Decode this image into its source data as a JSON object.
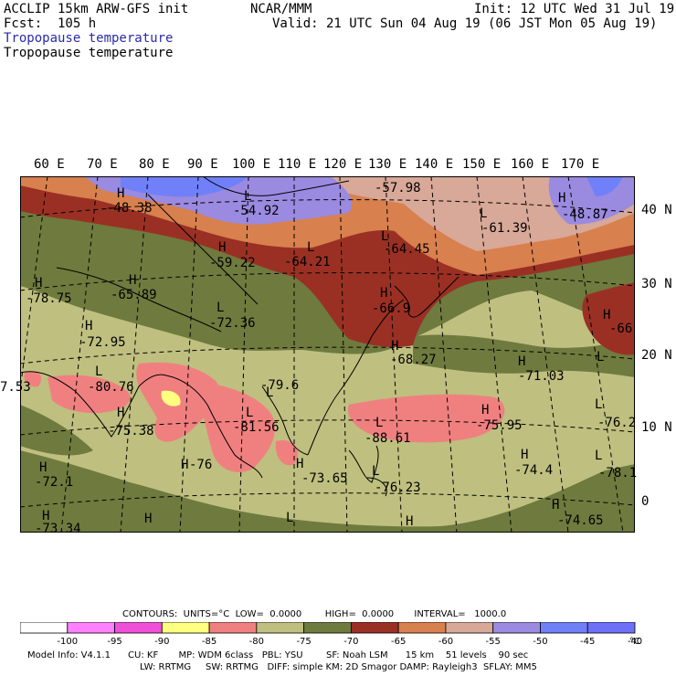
{
  "header": {
    "title": "ACCLIP 15km ARW-GFS init",
    "fcst": "Fcst:  105 h",
    "org": "NCAR/MMM",
    "init": "Init: 12 UTC Wed 31 Jul 19",
    "valid": "Valid: 21 UTC Sun 04 Aug 19 (06 JST Mon 05 Aug 19)",
    "field_label_1": "Tropopause temperature",
    "field_label_2": "Tropopause temperature"
  },
  "lon_labels": [
    "60 E",
    "70 E",
    "80 E",
    "90 E",
    "100 E",
    "110 E",
    "120 E",
    "130 E",
    "140 E",
    "150 E",
    "160 E",
    "170 E"
  ],
  "lat_labels": [
    "40 N",
    "30 N",
    "20 N",
    "10 N",
    "0"
  ],
  "map_labels": [
    {
      "m": "H",
      "v": "-48.38"
    },
    {
      "m": "L",
      "v": "-54.92"
    },
    {
      "m": "",
      "v": "-57.98"
    },
    {
      "m": "L",
      "v": "-61.39"
    },
    {
      "m": "H",
      "v": "-48.87"
    },
    {
      "m": "H",
      "v": "-59.22"
    },
    {
      "m": "L",
      "v": "-64.21"
    },
    {
      "m": "L",
      "v": "-64.45"
    },
    {
      "m": "H",
      "v": "-78.75"
    },
    {
      "m": "H",
      "v": "-65.89"
    },
    {
      "m": "L",
      "v": "-72.36"
    },
    {
      "m": "H",
      "v": "-66.9"
    },
    {
      "m": "H",
      "v": "-66"
    },
    {
      "m": "H",
      "v": "-72.95"
    },
    {
      "m": "H",
      "v": "-68.27"
    },
    {
      "m": "H",
      "v": "-71.03"
    },
    {
      "m": "L",
      "v": "-80.76"
    },
    {
      "m": "L",
      "v": "-79.6"
    },
    {
      "m": "",
      "v": "7.53"
    },
    {
      "m": "H",
      "v": "-75.38"
    },
    {
      "m": "L",
      "v": "-81.56"
    },
    {
      "m": "L",
      "v": "-88.61"
    },
    {
      "m": "H",
      "v": "-75.95"
    },
    {
      "m": "L",
      "v": "-76.2"
    },
    {
      "m": "H",
      "v": "-72.1"
    },
    {
      "m": "H",
      "v": "-76"
    },
    {
      "m": "H",
      "v": "-73.65"
    },
    {
      "m": "L",
      "v": "-76.23"
    },
    {
      "m": "H",
      "v": "-74.4"
    },
    {
      "m": "L",
      "v": "-78.1"
    },
    {
      "m": "H",
      "v": "-73.34"
    },
    {
      "m": "H",
      "v": "-74.65"
    },
    {
      "m": "H",
      "v": ""
    },
    {
      "m": "H",
      "v": ""
    },
    {
      "m": "L",
      "v": ""
    },
    {
      "m": "L",
      "v": ""
    }
  ],
  "contours": {
    "text": "CONTOURS:  UNITS=°C  LOW=  0.0000        HIGH=  0.0000       INTERVAL=   1000.0"
  },
  "legend": {
    "colors": [
      "#ffffff",
      "#ff80ff",
      "#f050d8",
      "#ffff80",
      "#f08080",
      "#bfbf80",
      "#6f7a3e",
      "#9a3024",
      "#d8804e",
      "#d8a898",
      "#9a8ae0",
      "#7080f8",
      "#6e70f8"
    ],
    "labels": [
      "-100",
      "-95",
      "-90",
      "-85",
      "-80",
      "-75",
      "-70",
      "-65",
      "-60",
      "-55",
      "-50",
      "-45",
      "-40"
    ],
    "unit": "°C"
  },
  "footer": {
    "line1": "Model Info: V4.1.1      CU: KF       MP: WDM 6class   PBL: YSU        SF: Noah LSM      15 km    51 levels    90 sec",
    "line2": "LW: RRTMG     SW: RRTMG   DIFF: simple KM: 2D Smagor DAMP: Rayleigh3  SFLAY: MM5"
  }
}
